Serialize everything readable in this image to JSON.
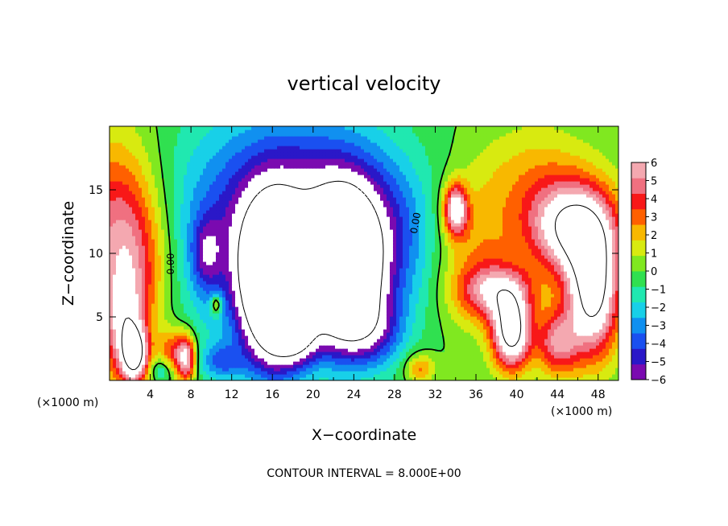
{
  "chart_data": {
    "type": "heatmap",
    "title": "vertical velocity",
    "xlabel": "X−coordinate",
    "ylabel": "Z−coordinate",
    "x_unit_left": "(×1000 m)",
    "x_unit_right": "(×1000 m)",
    "footer": "CONTOUR INTERVAL = 8.000E+00",
    "xlim": [
      0,
      50
    ],
    "ylim": [
      0,
      20
    ],
    "x_ticks": [
      4,
      8,
      12,
      16,
      20,
      24,
      28,
      32,
      36,
      40,
      44,
      48
    ],
    "x_tick_labels": [
      "4",
      "8",
      "12",
      "16",
      "20",
      "24",
      "28",
      "32",
      "36",
      "40",
      "44",
      "48"
    ],
    "y_ticks": [
      5,
      10,
      15
    ],
    "y_tick_labels": [
      "5",
      "10",
      "15"
    ],
    "contour_labels": [
      "0.00",
      "0.00"
    ],
    "colorbar": {
      "min": -6,
      "max": 6,
      "ticks": [
        6,
        5,
        4,
        3,
        2,
        1,
        0,
        -1,
        -2,
        -3,
        -4,
        -5,
        -6
      ],
      "tick_labels": [
        "6",
        "5",
        "4",
        "3",
        "2",
        "1",
        "0",
        "−1",
        "−2",
        "−3",
        "−4",
        "−5",
        "−6"
      ],
      "colors": [
        "#7a0ab0",
        "#2a18c8",
        "#1a50f0",
        "#1090f0",
        "#18d0e8",
        "#20e8b0",
        "#30e050",
        "#80e820",
        "#d8ea10",
        "#f8b800",
        "#ff6000",
        "#f81818",
        "#f07080",
        "#f4a8b0"
      ]
    },
    "field_features": [
      {
        "x": 0.5,
        "z": 12.5,
        "w": 4.0,
        "sx": 3.0,
        "sz": 5.0
      },
      {
        "x": 1.5,
        "z": 4.0,
        "w": 5.0,
        "sx": 1.5,
        "sz": 3.0
      },
      {
        "x": 2.5,
        "z": 9.0,
        "w": 3.0,
        "sx": 2.5,
        "sz": 4.0
      },
      {
        "x": 2.5,
        "z": 2.0,
        "w": 7.0,
        "sx": 0.9,
        "sz": 1.5
      },
      {
        "x": 7.5,
        "z": 1.8,
        "w": 7.0,
        "sx": 0.7,
        "sz": 1.3
      },
      {
        "x": 6.0,
        "z": 2.5,
        "w": 3.0,
        "sx": 0.8,
        "sz": 1.2
      },
      {
        "x": 10.5,
        "z": 6.0,
        "w": 4.0,
        "sx": 0.4,
        "sz": 0.6
      },
      {
        "x": 17.0,
        "z": 12.0,
        "w": -6.5,
        "sx": 7.0,
        "sz": 6.0
      },
      {
        "x": 24.5,
        "z": 11.0,
        "w": -4.5,
        "sx": 4.5,
        "sz": 4.5
      },
      {
        "x": 16.0,
        "z": 7.5,
        "w": -14.0,
        "sx": 2.0,
        "sz": 4.0
      },
      {
        "x": 23.0,
        "z": 8.5,
        "w": -14.0,
        "sx": 2.0,
        "sz": 3.5
      },
      {
        "x": 18.5,
        "z": 3.5,
        "w": -5.0,
        "sx": 1.5,
        "sz": 1.5
      },
      {
        "x": 26.0,
        "z": 4.0,
        "w": -3.5,
        "sx": 2.0,
        "sz": 2.0
      },
      {
        "x": 9.5,
        "z": 10.0,
        "w": -3.0,
        "sx": 1.0,
        "sz": 2.0
      },
      {
        "x": 34.0,
        "z": 13.5,
        "w": 7.0,
        "sx": 0.8,
        "sz": 1.4
      },
      {
        "x": 39.5,
        "z": 3.8,
        "w": 9.0,
        "sx": 1.3,
        "sz": 2.0
      },
      {
        "x": 38.0,
        "z": 7.0,
        "w": 5.0,
        "sx": 2.5,
        "sz": 1.5
      },
      {
        "x": 45.5,
        "z": 12.0,
        "w": 8.0,
        "sx": 3.0,
        "sz": 2.5
      },
      {
        "x": 47.5,
        "z": 7.0,
        "w": 9.0,
        "sx": 1.8,
        "sz": 3.5
      },
      {
        "x": 44.0,
        "z": 3.0,
        "w": 5.0,
        "sx": 1.5,
        "sz": 1.8
      },
      {
        "x": 36.0,
        "z": 10.0,
        "w": 2.5,
        "sx": 3.0,
        "sz": 4.0
      },
      {
        "x": 42.0,
        "z": 16.0,
        "w": 2.0,
        "sx": 4.0,
        "sz": 3.0
      },
      {
        "x": 30.5,
        "z": 1.0,
        "w": 3.0,
        "sx": 1.0,
        "sz": 0.8
      },
      {
        "x": 11.0,
        "z": 1.5,
        "w": -3.0,
        "sx": 1.5,
        "sz": 1.0
      },
      {
        "x": 5.0,
        "z": 0.8,
        "w": -2.0,
        "sx": 0.8,
        "sz": 0.6
      }
    ]
  }
}
